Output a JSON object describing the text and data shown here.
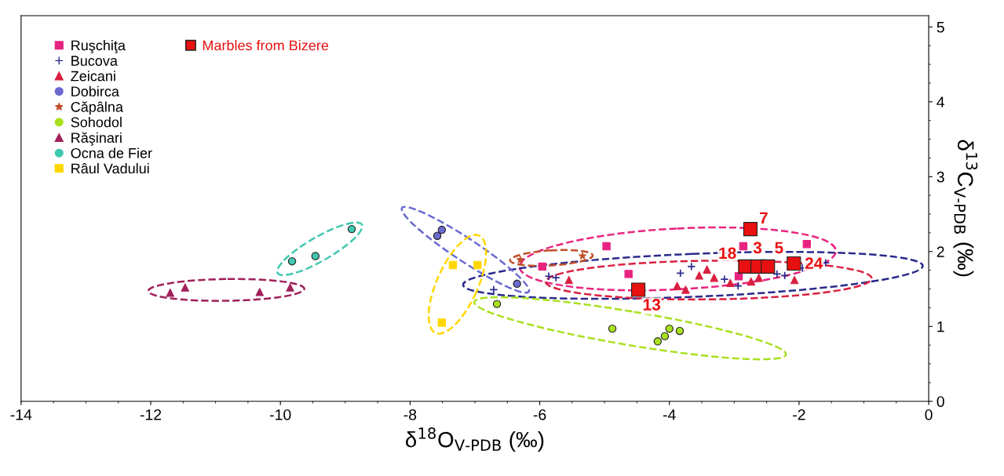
{
  "chart_data": {
    "type": "scatter",
    "xlabel": "δ$^{18}$O$_{V-PDB}$ (‰)",
    "ylabel": "δ$^{13}$C$_{V-PDB}$ (‰)",
    "xlim": [
      -14,
      0
    ],
    "xticks": [
      -14,
      -12,
      -10,
      -8,
      -6,
      -4,
      -2,
      0
    ],
    "ylim": [
      0,
      5.15
    ],
    "yticks": [
      0,
      1,
      2,
      3,
      4,
      5
    ],
    "legend": "top left",
    "grid": false,
    "series": [
      {
        "name": "Ruşchiţa",
        "color": "#e8237f",
        "marker": "square",
        "x": [
          -5.96,
          -4.97,
          -4.63,
          -2.86,
          -2.93,
          -1.88
        ],
        "values": [
          1.8,
          2.07,
          1.7,
          2.07,
          1.67,
          2.1
        ]
      },
      {
        "name": "Bucova",
        "color": "#2a2a8c",
        "marker": "cross",
        "x": [
          -6.71,
          -5.86,
          -5.75,
          -3.83,
          -3.66,
          -3.15,
          -2.94,
          -2.34,
          -2.22,
          -1.95,
          -1.59
        ],
        "values": [
          1.49,
          1.67,
          1.65,
          1.71,
          1.8,
          1.63,
          1.54,
          1.7,
          1.68,
          1.78,
          1.85
        ]
      },
      {
        "name": "Zeicani",
        "color": "#d92040",
        "marker": "triangle",
        "x": [
          -5.55,
          -3.88,
          -3.75,
          -3.54,
          -3.42,
          -3.31,
          -3.06,
          -2.74,
          -2.62,
          -2.07
        ],
        "values": [
          1.62,
          1.54,
          1.49,
          1.68,
          1.76,
          1.65,
          1.58,
          1.6,
          1.65,
          1.62
        ]
      },
      {
        "name": "Dobirca",
        "color": "#6a6ad0",
        "marker": "circle",
        "x": [
          -7.58,
          -7.51,
          -6.35
        ],
        "values": [
          2.21,
          2.29,
          1.57
        ]
      },
      {
        "name": "Căpâlna",
        "color": "#c0502a",
        "marker": "star",
        "x": [
          -6.3,
          -5.34
        ],
        "values": [
          1.89,
          1.94
        ]
      },
      {
        "name": "Sohodol",
        "color": "#a8e020",
        "marker": "circle",
        "x": [
          -6.66,
          -4.88,
          -4.0,
          -3.84,
          -4.07,
          -4.18
        ],
        "values": [
          1.3,
          0.97,
          0.97,
          0.94,
          0.87,
          0.8
        ]
      },
      {
        "name": "Răşinari",
        "color": "#a0205a",
        "marker": "triangle",
        "x": [
          -11.7,
          -11.47,
          -10.32,
          -9.85
        ],
        "values": [
          1.45,
          1.52,
          1.46,
          1.52
        ]
      },
      {
        "name": "Ocna de Fier",
        "color": "#40c8b0",
        "marker": "circle",
        "x": [
          -9.82,
          -9.46,
          -8.9
        ],
        "values": [
          1.87,
          1.94,
          2.3
        ]
      },
      {
        "name": "Râul Vadului",
        "color": "#ffd700",
        "marker": "square",
        "x": [
          -7.34,
          -6.96,
          -7.51
        ],
        "values": [
          1.82,
          1.82,
          1.05
        ]
      },
      {
        "name": "Marbles from Bizere",
        "color": "#e81010",
        "marker": "square",
        "x": [
          -2.75,
          -2.83,
          -2.64,
          -2.48,
          -2.08,
          -4.48
        ],
        "values": [
          2.3,
          1.8,
          1.8,
          1.8,
          1.84,
          1.49
        ]
      }
    ],
    "annotations": [
      {
        "text": "7",
        "x": -2.75,
        "y": 2.3
      },
      {
        "text": "18",
        "x": -2.83,
        "y": 1.8
      },
      {
        "text": "3",
        "x": -2.64,
        "y": 1.8
      },
      {
        "text": "5",
        "x": -2.48,
        "y": 1.8
      },
      {
        "text": "24",
        "x": -2.08,
        "y": 1.84
      },
      {
        "text": "13",
        "x": -4.48,
        "y": 1.49
      }
    ]
  }
}
